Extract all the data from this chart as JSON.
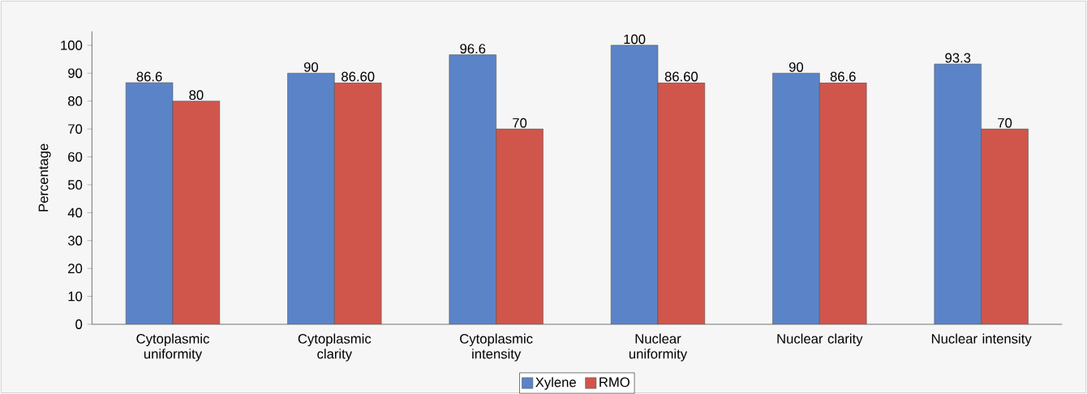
{
  "chart_data": {
    "type": "bar",
    "ylabel": "Percentage",
    "categories": [
      "Cytoplasmic uniformity",
      "Cytoplasmic clarity",
      "Cytoplasmic intensity",
      "Nuclear uniformity",
      "Nuclear clarity",
      "Nuclear intensity"
    ],
    "series": [
      {
        "name": "Xylene",
        "color": "#5b84c8",
        "values": [
          86.6,
          90,
          96.6,
          100,
          90,
          93.3
        ],
        "value_labels": [
          "86.6",
          "90",
          "96.6",
          "100",
          "90",
          "93.3"
        ]
      },
      {
        "name": "RMO",
        "color": "#d0564c",
        "values": [
          80,
          86.6,
          70,
          86.6,
          86.6,
          70
        ],
        "value_labels": [
          "80",
          "86.60",
          "70",
          "86.60",
          "86.6",
          "70"
        ]
      }
    ],
    "ylim": [
      0,
      105
    ],
    "yticks": [
      0,
      10,
      20,
      30,
      40,
      50,
      60,
      70,
      80,
      90,
      100
    ],
    "legend": "bottom"
  }
}
